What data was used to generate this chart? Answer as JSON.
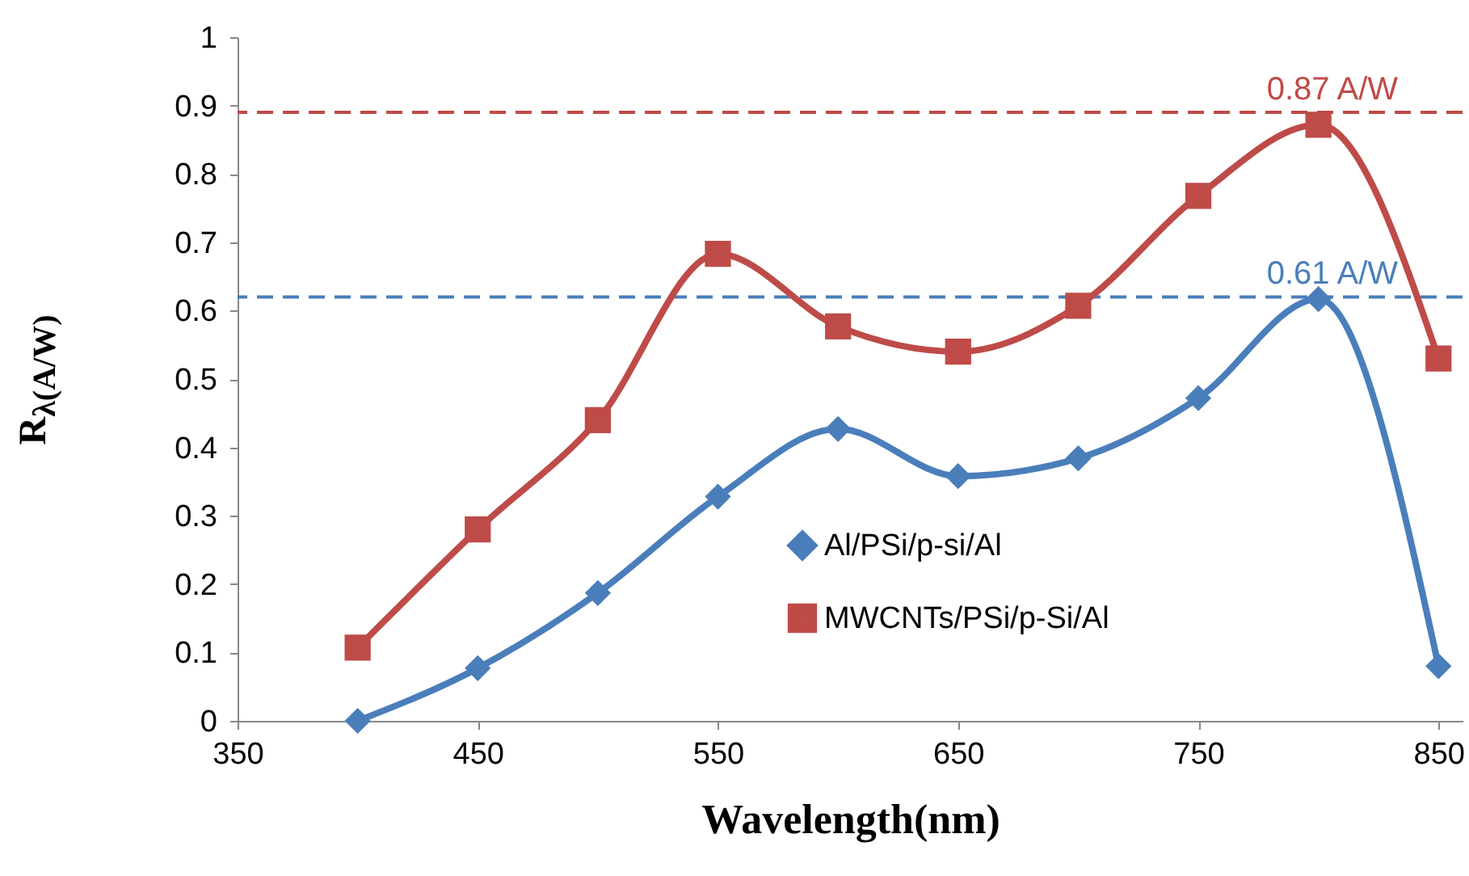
{
  "chart_data": {
    "type": "line",
    "xlabel": "Wavelength(nm)",
    "ylabel": "R$_{λ(A/W)}$",
    "x": [
      400,
      450,
      500,
      550,
      600,
      650,
      700,
      750,
      800,
      850
    ],
    "series": [
      {
        "name": "Al/PSi/p-si/Al",
        "color": "#4a7ebb",
        "marker": "diamond",
        "values": [
          0.0,
          0.077,
          0.187,
          0.328,
          0.427,
          0.358,
          0.384,
          0.472,
          0.617,
          0.08
        ]
      },
      {
        "name": "MWCNTs/PSi/p-Si/Al",
        "color": "#be4b48",
        "marker": "square",
        "values": [
          0.107,
          0.28,
          0.44,
          0.683,
          0.577,
          0.54,
          0.607,
          0.768,
          0.872,
          0.53
        ]
      }
    ],
    "xlim": [
      350,
      860
    ],
    "xticks": [
      350,
      450,
      550,
      650,
      750,
      850
    ],
    "ylim": [
      0,
      1
    ],
    "yticks": [
      0,
      0.1,
      0.2,
      0.3,
      0.4,
      0.5,
      0.6,
      0.7,
      0.8,
      0.9,
      1
    ],
    "ref_lines": [
      {
        "axis": "y",
        "value": 0.89,
        "label": "0.87 A/W",
        "color": "#be4b48",
        "line_style": "dashed"
      },
      {
        "axis": "y",
        "value": 0.62,
        "label": "0.61 A/W",
        "color": "#4a7ebb",
        "line_style": "dashed"
      }
    ],
    "legend": "bottom",
    "grid": false
  }
}
